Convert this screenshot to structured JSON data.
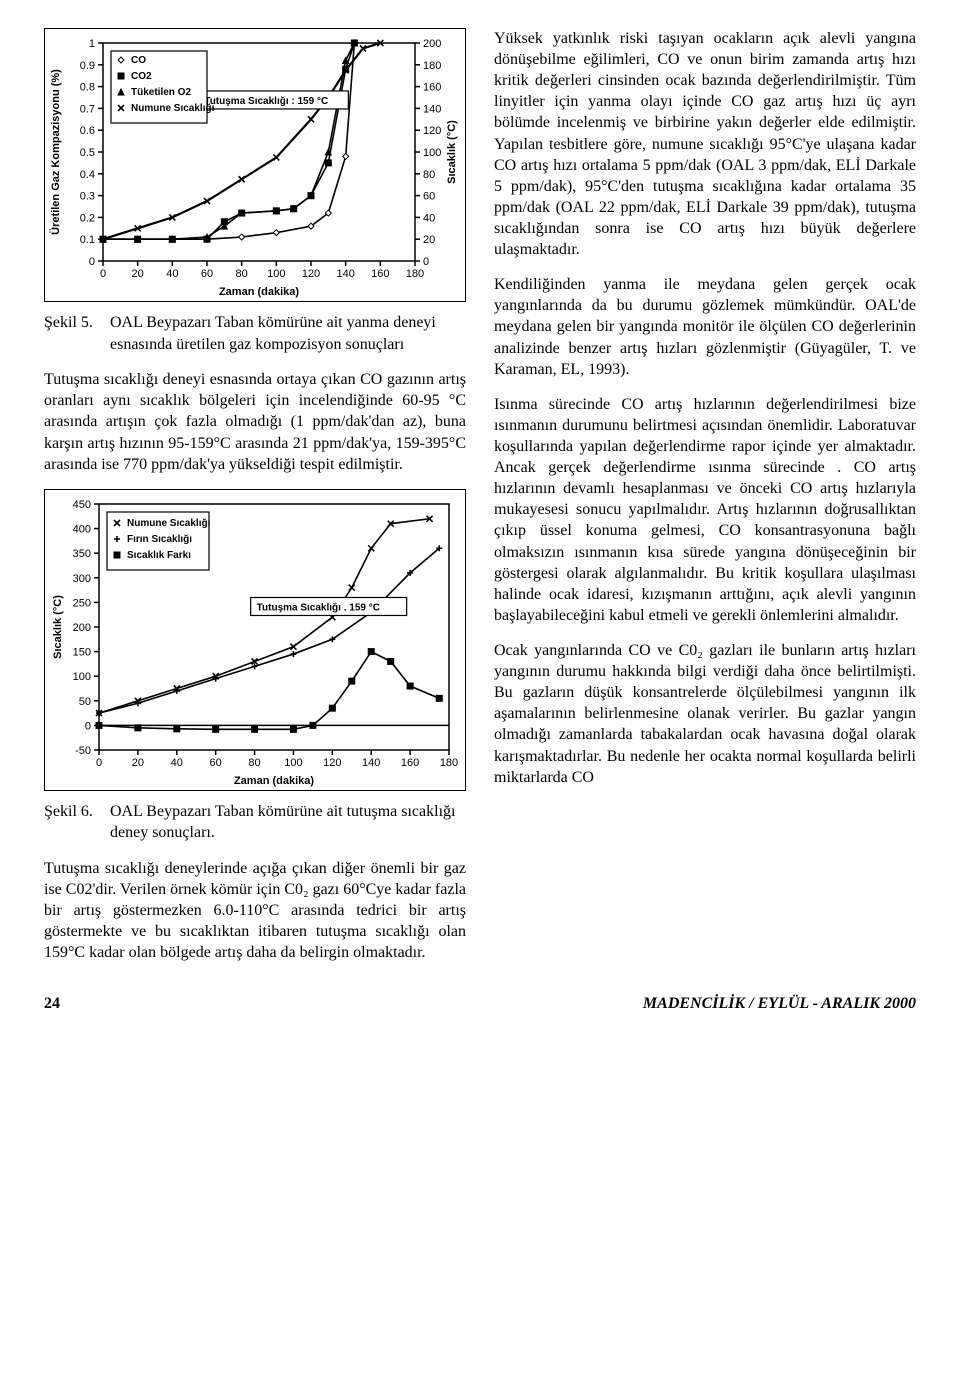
{
  "fig5": {
    "type": "line-dual-axis",
    "title_box": "Tutuşma Sıcaklığı : 159 °C",
    "x_label": "Zaman (dakika)",
    "y_left_label": "Üretilen Gaz Kompazisyonu (%)",
    "y_right_label": "Sıcaklık (°C)",
    "x_range": [
      0,
      180
    ],
    "x_tick_step": 20,
    "y_left_range": [
      0,
      1.0
    ],
    "y_left_ticks": [
      0,
      0.1,
      0.2,
      0.3,
      0.4,
      0.5,
      0.6,
      0.7,
      0.8,
      0.9,
      1.0
    ],
    "y_right_range": [
      0,
      200
    ],
    "y_right_tick_step": 20,
    "legend": [
      {
        "marker": "diamond-hollow",
        "label": "CO"
      },
      {
        "marker": "square-solid",
        "label": "CO2"
      },
      {
        "marker": "triangle-solid",
        "label": "Tüketilen O2"
      },
      {
        "marker": "x",
        "label": "Numune Sıcaklığı"
      }
    ],
    "series": {
      "CO": {
        "axis": "left",
        "data": [
          [
            0,
            0.1
          ],
          [
            20,
            0.1
          ],
          [
            40,
            0.1
          ],
          [
            60,
            0.1
          ],
          [
            80,
            0.11
          ],
          [
            100,
            0.13
          ],
          [
            120,
            0.16
          ],
          [
            130,
            0.22
          ],
          [
            140,
            0.48
          ],
          [
            145,
            1.0
          ]
        ],
        "marker": "diamond-hollow"
      },
      "CO2": {
        "axis": "left",
        "data": [
          [
            0,
            0.1
          ],
          [
            20,
            0.1
          ],
          [
            40,
            0.1
          ],
          [
            60,
            0.1
          ],
          [
            70,
            0.18
          ],
          [
            80,
            0.22
          ],
          [
            100,
            0.23
          ],
          [
            110,
            0.24
          ],
          [
            120,
            0.3
          ],
          [
            130,
            0.45
          ],
          [
            140,
            0.88
          ],
          [
            145,
            1.0
          ]
        ],
        "marker": "square-solid"
      },
      "TuketilenO2": {
        "axis": "left",
        "data": [
          [
            0,
            0.1
          ],
          [
            20,
            0.1
          ],
          [
            40,
            0.1
          ],
          [
            60,
            0.11
          ],
          [
            70,
            0.16
          ],
          [
            80,
            0.22
          ],
          [
            100,
            0.23
          ],
          [
            110,
            0.24
          ],
          [
            120,
            0.3
          ],
          [
            130,
            0.5
          ],
          [
            140,
            0.92
          ],
          [
            145,
            1.0
          ]
        ],
        "marker": "triangle-solid"
      },
      "Sicaklik": {
        "axis": "right",
        "data": [
          [
            0,
            20
          ],
          [
            20,
            30
          ],
          [
            40,
            40
          ],
          [
            60,
            55
          ],
          [
            80,
            75
          ],
          [
            100,
            95
          ],
          [
            120,
            130
          ],
          [
            130,
            150
          ],
          [
            140,
            175
          ],
          [
            150,
            195
          ],
          [
            160,
            200
          ]
        ],
        "marker": "x"
      }
    },
    "colors": {
      "stroke": "#000000",
      "bg": "#ffffff",
      "frame": "#000000"
    },
    "font_sizes": {
      "axis_ticks": 11,
      "axis_label": 11,
      "legend": 10
    }
  },
  "fig6": {
    "type": "line",
    "title_box": "Tutuşma Sıcaklığı . 159 °C",
    "x_label": "Zaman (dakika)",
    "y_label": "Sıcaklık (°C)",
    "x_range": [
      0,
      180
    ],
    "x_tick_step": 20,
    "y_range": [
      -50,
      450
    ],
    "y_tick_step": 50,
    "legend": [
      {
        "marker": "x",
        "label": "Numune Sıcaklığı"
      },
      {
        "marker": "cross",
        "label": "Fırın Sıcaklığı"
      },
      {
        "marker": "square-solid",
        "label": "Sıcaklık Farkı"
      }
    ],
    "series": {
      "Numune": {
        "data": [
          [
            0,
            25
          ],
          [
            20,
            50
          ],
          [
            40,
            75
          ],
          [
            60,
            100
          ],
          [
            80,
            130
          ],
          [
            100,
            160
          ],
          [
            120,
            220
          ],
          [
            130,
            280
          ],
          [
            140,
            360
          ],
          [
            150,
            410
          ],
          [
            170,
            420
          ]
        ],
        "marker": "x"
      },
      "Firin": {
        "data": [
          [
            0,
            25
          ],
          [
            20,
            45
          ],
          [
            40,
            70
          ],
          [
            60,
            95
          ],
          [
            80,
            120
          ],
          [
            100,
            145
          ],
          [
            120,
            175
          ],
          [
            140,
            230
          ],
          [
            160,
            310
          ],
          [
            175,
            360
          ]
        ],
        "marker": "cross"
      },
      "Fark": {
        "data": [
          [
            0,
            0
          ],
          [
            20,
            -5
          ],
          [
            40,
            -7
          ],
          [
            60,
            -8
          ],
          [
            80,
            -8
          ],
          [
            100,
            -8
          ],
          [
            110,
            0
          ],
          [
            120,
            35
          ],
          [
            130,
            90
          ],
          [
            140,
            150
          ],
          [
            150,
            130
          ],
          [
            160,
            80
          ],
          [
            175,
            55
          ]
        ],
        "marker": "square-solid"
      }
    },
    "colors": {
      "stroke": "#000000",
      "bg": "#ffffff",
      "frame": "#000000"
    },
    "font_sizes": {
      "axis_ticks": 11,
      "axis_label": 11,
      "legend": 10
    }
  },
  "captions": {
    "fig5_label": "Şekil 5.",
    "fig5_text": "OAL Beypazarı Taban kömürüne ait yanma deneyi esnasında üretilen gaz kompozisyon sonuçları",
    "fig6_label": "Şekil 6.",
    "fig6_text": "OAL Beypazarı Taban kömürüne ait tutuşma sıcaklığı deney sonuçları."
  },
  "paragraphs": {
    "p1": "Tutuşma sıcaklığı deneyi esnasında ortaya çıkan CO gazının artış oranları aynı sıcaklık bölgeleri için incelendiğinde 60-95 °C arasında artışın çok fazla olmadığı (1 ppm/dak'dan az), buna karşın artış hızının 95-159°C arasında 21 ppm/dak'ya, 159-395°C arasında ise 770 ppm/dak'ya yükseldiği tespit edilmiştir.",
    "p2": "Tutuşma sıcaklığı deneylerinde açığa çıkan diğer önemli bir gaz ise C02'dir. Verilen örnek kömür için C0₂ gazı 60°Cye kadar fazla bir artış göstermezken 6.0-110°C arasında tedrici bir artış göstermekte ve bu sıcaklıktan itibaren tutuşma sıcaklığı olan 159°C kadar olan bölgede artış daha da belirgin olmaktadır.",
    "p3": "Yüksek yatkınlık riski taşıyan ocakların açık alevli yangına dönüşebilme eğilimleri, CO ve onun birim zamanda artış hızı kritik değerleri cinsinden ocak bazında değerlendirilmiştir. Tüm linyitler için yanma olayı içinde CO gaz artış hızı üç ayrı bölümde incelenmiş ve birbirine yakın değerler elde edilmiştir. Yapılan tesbitlere göre, numune sıcaklığı 95°C'ye ulaşana kadar CO artış hızı ortalama 5 ppm/dak (OAL 3 ppm/dak, ELİ Darkale 5 ppm/dak), 95°C'den tutuşma sıcaklığına kadar ortalama 35 ppm/dak (OAL 22 ppm/dak, ELİ Darkale 39 ppm/dak), tutuşma sıcaklığından sonra ise CO artış hızı büyük değerlere ulaşmaktadır.",
    "p4": "Kendiliğinden yanma ile meydana gelen gerçek ocak yangınlarında da bu durumu gözlemek mümkündür. OAL'de meydana gelen bir yangında monitör ile ölçülen CO değerlerinin analizinde benzer artış hızları gözlenmiştir (Güyagüler, T. ve Karaman, EL, 1993).",
    "p5": "Isınma sürecinde CO artış hızlarının değerlendirilmesi bize ısınmanın durumunu belirtmesi açısından önemlidir. Laboratuvar koşullarında yapılan değerlendirme rapor içinde yer almaktadır. Ancak gerçek değerlendirme ısınma sürecinde . CO artış hızlarının devamlı hesaplanması ve önceki CO artış hızlarıyla mukayesesi sonucu yapılmalıdır. Artış hızlarının doğrusallıktan çıkıp üssel konuma gelmesi, CO konsantrasyonuna bağlı olmaksızın ısınmanın kısa sürede yangına dönüşeceğinin bir göstergesi olarak algılanmalıdır. Bu kritik koşullara ulaşılması halinde ocak idaresi, kızışmanın arttığını, açık alevli yangının başlayabileceğini kabul etmeli ve gerekli önlemlerini almalıdır.",
    "p6": "Ocak yangınlarında CO ve C0₂ gazları ile bunların artış hızları yangının durumu hakkında bilgi verdiği daha önce belirtilmişti. Bu gazların düşük konsantrelerde ölçülebilmesi yangının ilk aşamalarının belirlenmesine olanak verirler. Bu gazlar yangın olmadığı zamanlarda tabakalardan ocak havasına doğal olarak karışmaktadırlar. Bu nedenle her ocakta normal koşullarda belirli miktarlarda CO"
  },
  "footer": {
    "page_number": "24",
    "journal": "MADENCİLİK / EYLÜL - ARALIK 2000"
  }
}
